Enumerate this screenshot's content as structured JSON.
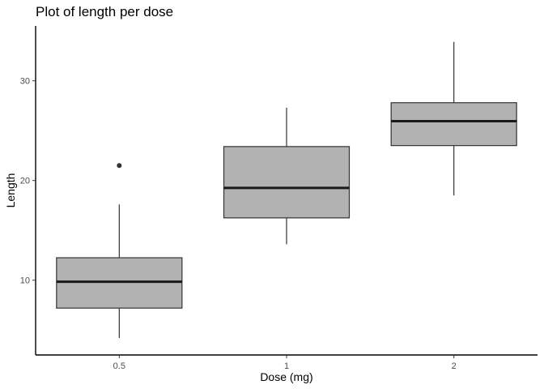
{
  "chart_data": {
    "type": "boxplot",
    "title": "Plot of length per dose",
    "xlabel": "Dose (mg)",
    "ylabel": "Length",
    "categories": [
      "0.5",
      "1",
      "2"
    ],
    "ylim": [
      2.5,
      35.5
    ],
    "yticks": [
      10,
      20,
      30
    ],
    "grid": false,
    "legend": "none",
    "boxes": [
      {
        "category": "0.5",
        "whisker_low": 4.2,
        "q1": 7.2,
        "median": 9.85,
        "q3": 12.25,
        "whisker_high": 17.6,
        "outliers": [
          21.5
        ]
      },
      {
        "category": "1",
        "whisker_low": 13.6,
        "q1": 16.25,
        "median": 19.25,
        "q3": 23.4,
        "whisker_high": 27.3,
        "outliers": []
      },
      {
        "category": "2",
        "whisker_low": 18.5,
        "q1": 23.5,
        "median": 25.95,
        "q3": 27.8,
        "whisker_high": 33.9,
        "outliers": []
      }
    ],
    "colors": {
      "box_fill": "#b2b2b2",
      "box_stroke": "#333333",
      "median": "#1a1a1a",
      "axis": "#000000",
      "point": "#333333"
    }
  }
}
